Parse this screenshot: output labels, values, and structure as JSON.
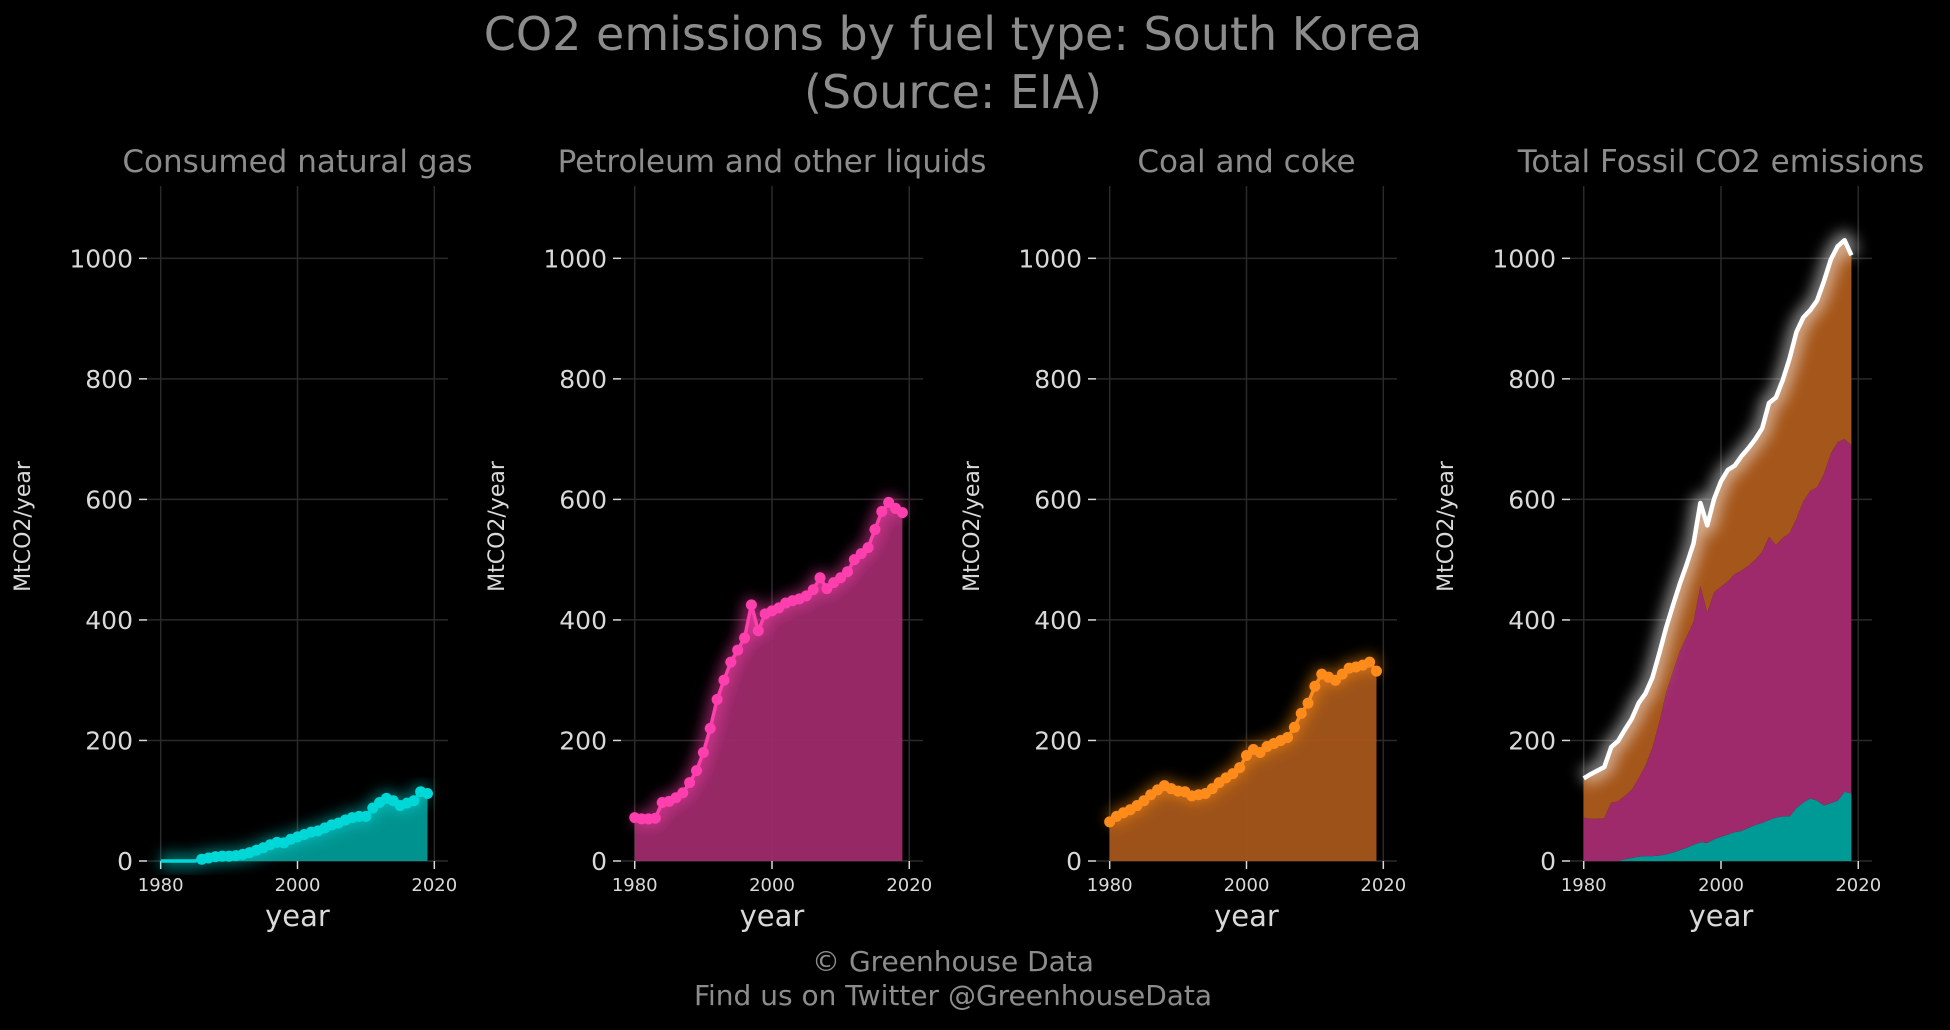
{
  "title": {
    "line1": "CO2 emissions by fuel type: South Korea",
    "line2": "(Source: EIA)"
  },
  "footer": {
    "line1": "© Greenhouse Data",
    "line2": "Find us on Twitter @GreenhouseData"
  },
  "colors": {
    "background": "#000000",
    "grid": "#2a2a2a",
    "title_text": "#8c8c8c",
    "axis_text": "#d9d9d9",
    "gas": "#00d8d8",
    "gas_fill": "#009a96",
    "petroleum": "#ff3fae",
    "petroleum_fill": "#9e2a6c",
    "coal": "#ff8c1a",
    "coal_fill": "#a5561a",
    "total": "#ffffff"
  },
  "chart_data": [
    {
      "type": "area",
      "title": "Consumed natural gas",
      "xlabel": "year",
      "ylabel": "MtCO2/year",
      "xlim": [
        1978,
        2022
      ],
      "ylim": [
        0,
        1120
      ],
      "xticks": [
        1980,
        2000,
        2020
      ],
      "yticks": [
        0,
        200,
        400,
        600,
        800,
        1000
      ],
      "grid": true,
      "color": "gas",
      "fill": "gas_fill",
      "markers": true,
      "x": [
        1980,
        1981,
        1982,
        1983,
        1984,
        1985,
        1986,
        1987,
        1988,
        1989,
        1990,
        1991,
        1992,
        1993,
        1994,
        1995,
        1996,
        1997,
        1998,
        1999,
        2000,
        2001,
        2002,
        2003,
        2004,
        2005,
        2006,
        2007,
        2008,
        2009,
        2010,
        2011,
        2012,
        2013,
        2014,
        2015,
        2016,
        2017,
        2018,
        2019
      ],
      "values": [
        0,
        0,
        0,
        0,
        0,
        0,
        3,
        5,
        7,
        8,
        8,
        9,
        11,
        14,
        18,
        22,
        27,
        31,
        30,
        36,
        40,
        44,
        48,
        50,
        55,
        60,
        63,
        68,
        72,
        74,
        74,
        88,
        97,
        104,
        100,
        92,
        96,
        100,
        115,
        112
      ]
    },
    {
      "type": "area",
      "title": "Petroleum and other liquids",
      "xlabel": "year",
      "ylabel": "MtCO2/year",
      "xlim": [
        1978,
        2022
      ],
      "ylim": [
        0,
        1120
      ],
      "xticks": [
        1980,
        2000,
        2020
      ],
      "yticks": [
        0,
        200,
        400,
        600,
        800,
        1000
      ],
      "grid": true,
      "color": "petroleum",
      "fill": "petroleum_fill",
      "markers": true,
      "x": [
        1980,
        1981,
        1982,
        1983,
        1984,
        1985,
        1986,
        1987,
        1988,
        1989,
        1990,
        1991,
        1992,
        1993,
        1994,
        1995,
        1996,
        1997,
        1998,
        1999,
        2000,
        2001,
        2002,
        2003,
        2004,
        2005,
        2006,
        2007,
        2008,
        2009,
        2010,
        2011,
        2012,
        2013,
        2014,
        2015,
        2016,
        2017,
        2018,
        2019
      ],
      "values": [
        72,
        70,
        70,
        71,
        97,
        99,
        105,
        113,
        130,
        150,
        180,
        220,
        268,
        300,
        330,
        350,
        370,
        425,
        382,
        410,
        415,
        420,
        428,
        432,
        435,
        440,
        450,
        470,
        452,
        462,
        470,
        480,
        500,
        510,
        520,
        550,
        580,
        595,
        585,
        578
      ]
    },
    {
      "type": "area",
      "title": "Coal and coke",
      "xlabel": "year",
      "ylabel": "MtCO2/year",
      "xlim": [
        1978,
        2022
      ],
      "ylim": [
        0,
        1120
      ],
      "xticks": [
        1980,
        2000,
        2020
      ],
      "yticks": [
        0,
        200,
        400,
        600,
        800,
        1000
      ],
      "grid": true,
      "color": "coal",
      "fill": "coal_fill",
      "markers": true,
      "x": [
        1980,
        1981,
        1982,
        1983,
        1984,
        1985,
        1986,
        1987,
        1988,
        1989,
        1990,
        1991,
        1992,
        1993,
        1994,
        1995,
        1996,
        1997,
        1998,
        1999,
        2000,
        2001,
        2002,
        2003,
        2004,
        2005,
        2006,
        2007,
        2008,
        2009,
        2010,
        2011,
        2012,
        2013,
        2014,
        2015,
        2016,
        2017,
        2018,
        2019
      ],
      "values": [
        65,
        74,
        80,
        85,
        92,
        100,
        110,
        118,
        125,
        120,
        116,
        115,
        108,
        110,
        112,
        120,
        130,
        138,
        145,
        155,
        175,
        185,
        180,
        190,
        195,
        200,
        205,
        222,
        245,
        262,
        290,
        310,
        305,
        300,
        310,
        320,
        322,
        325,
        330,
        315
      ]
    },
    {
      "type": "area",
      "stacked": true,
      "title": "Total Fossil CO2 emissions",
      "xlabel": "year",
      "ylabel": "MtCO2/year",
      "xlim": [
        1978,
        2022
      ],
      "ylim": [
        0,
        1120
      ],
      "xticks": [
        1980,
        2000,
        2020
      ],
      "yticks": [
        0,
        200,
        400,
        600,
        800,
        1000
      ],
      "grid": true,
      "x": [
        1980,
        1981,
        1982,
        1983,
        1984,
        1985,
        1986,
        1987,
        1988,
        1989,
        1990,
        1991,
        1992,
        1993,
        1994,
        1995,
        1996,
        1997,
        1998,
        1999,
        2000,
        2001,
        2002,
        2003,
        2004,
        2005,
        2006,
        2007,
        2008,
        2009,
        2010,
        2011,
        2012,
        2013,
        2014,
        2015,
        2016,
        2017,
        2018,
        2019
      ],
      "series": [
        {
          "color": "gas_fill",
          "ref": 0
        },
        {
          "color": "petroleum_fill",
          "ref": 1
        },
        {
          "color": "coal_fill",
          "ref": 2
        }
      ],
      "total_line": {
        "color": "total",
        "values": [
          137,
          144,
          150,
          156,
          189,
          199,
          218,
          236,
          262,
          278,
          304,
          344,
          387,
          424,
          460,
          492,
          527,
          594,
          557,
          601,
          630,
          649,
          656,
          672,
          685,
          700,
          718,
          760,
          769,
          798,
          834,
          878,
          902,
          914,
          930,
          962,
          998,
          1020,
          1030,
          1005
        ]
      }
    }
  ]
}
